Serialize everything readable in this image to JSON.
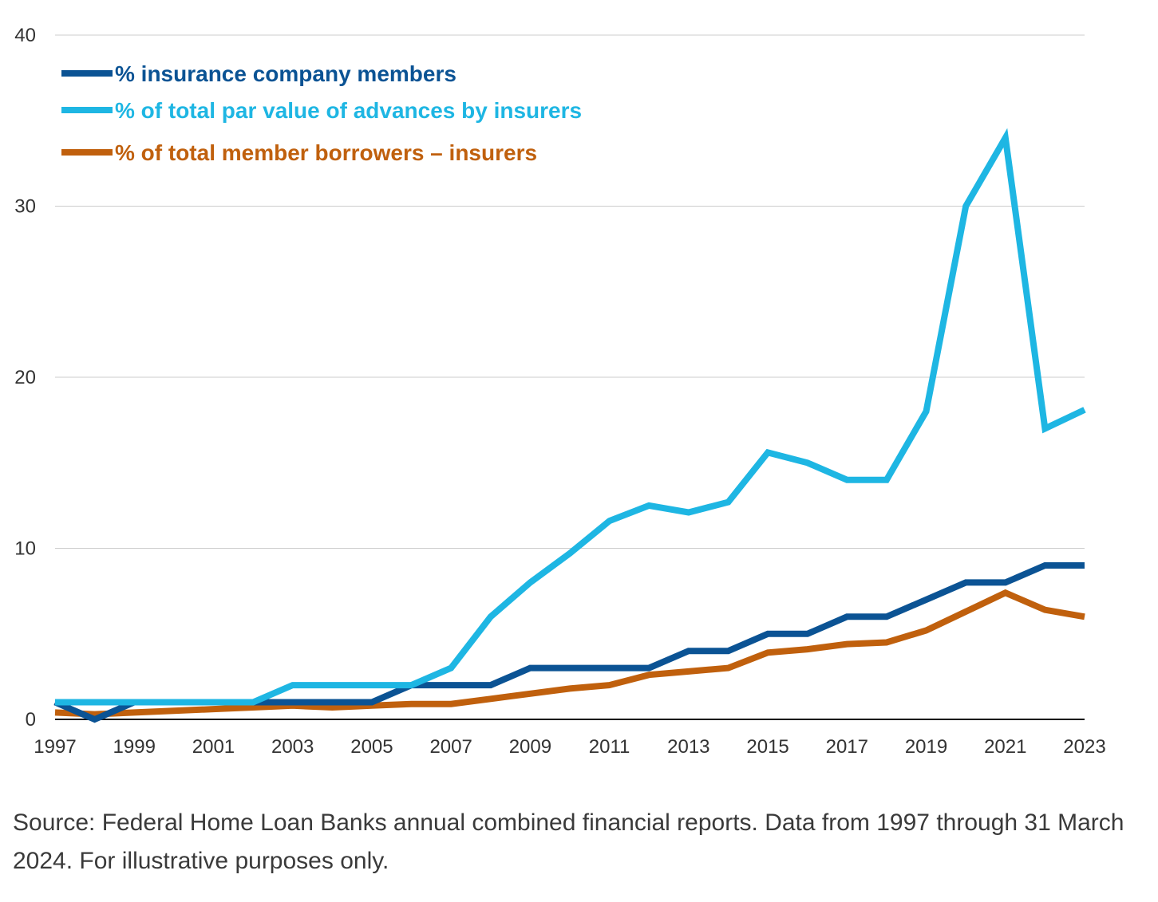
{
  "chart_data": {
    "type": "line",
    "title": "",
    "xlabel": "",
    "ylabel": "",
    "x": [
      1997,
      1998,
      1999,
      2000,
      2001,
      2002,
      2003,
      2004,
      2005,
      2006,
      2007,
      2008,
      2009,
      2010,
      2011,
      2012,
      2013,
      2014,
      2015,
      2016,
      2017,
      2018,
      2019,
      2020,
      2021,
      2022,
      2023
    ],
    "xticks": [
      "1997",
      "1999",
      "2001",
      "2003",
      "2005",
      "2007",
      "2009",
      "2011",
      "2013",
      "2015",
      "2017",
      "2019",
      "2021",
      "2023"
    ],
    "yticks": [
      "0",
      "10",
      "20",
      "30",
      "40"
    ],
    "ylim": [
      0,
      40
    ],
    "xlim": [
      1997,
      2023
    ],
    "grid": "horizontal",
    "legend_position": "top-left",
    "series": [
      {
        "name": "% insurance company members",
        "color": "#0b5394",
        "values": [
          1,
          0,
          1,
          1,
          1,
          1,
          1,
          1,
          1,
          2,
          2,
          2,
          3,
          3,
          3,
          3,
          4,
          4,
          5,
          5,
          6,
          6,
          7,
          8,
          8,
          9,
          9
        ]
      },
      {
        "name": "% of total par value of advances by insurers",
        "color": "#1eb6e3",
        "values": [
          1,
          1,
          1,
          1,
          1,
          1,
          2,
          2,
          2,
          2,
          3,
          6,
          8,
          9.7,
          11.6,
          12.5,
          12.1,
          12.7,
          15.6,
          15,
          14,
          14,
          18,
          30,
          34,
          17,
          18.1
        ]
      },
      {
        "name": "% of total member borrowers – insurers",
        "color": "#c0600d",
        "values": [
          0.4,
          0.3,
          0.4,
          0.5,
          0.6,
          0.7,
          0.8,
          0.7,
          0.8,
          0.9,
          0.9,
          1.2,
          1.5,
          1.8,
          2,
          2.6,
          2.8,
          3,
          3.9,
          4.1,
          4.4,
          4.5,
          5.2,
          6.3,
          7.4,
          6.4,
          6
        ]
      }
    ]
  },
  "source_note": "Source: Federal Home Loan Banks annual combined financial reports. Data from 1997 through 31 March 2024. For illustrative purposes only."
}
